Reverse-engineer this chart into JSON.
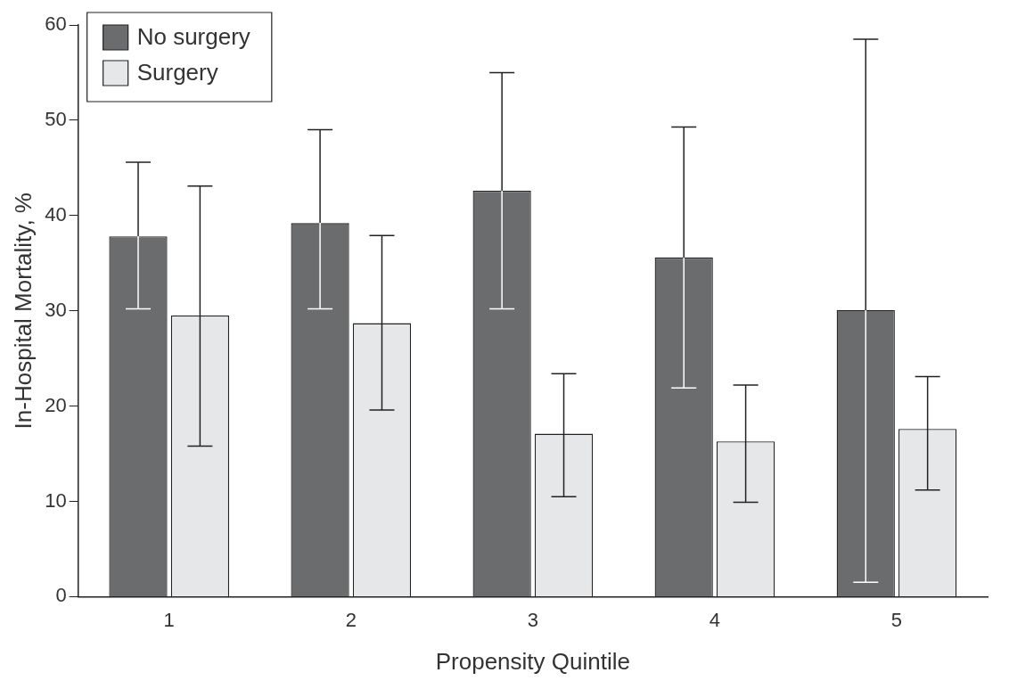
{
  "chart_data": {
    "type": "bar",
    "xlabel": "Propensity Quintile",
    "ylabel": "In-Hospital Mortality, %",
    "categories": [
      "1",
      "2",
      "3",
      "4",
      "5"
    ],
    "series": [
      {
        "name": "No surgery",
        "color": "#6b6c6e",
        "values": [
          37.8,
          39.2,
          42.6,
          35.6,
          30.1
        ],
        "errors": [
          [
            30.2,
            45.6
          ],
          [
            30.2,
            49.0
          ],
          [
            30.2,
            55.0
          ],
          [
            21.9,
            49.3
          ],
          [
            1.5,
            58.5
          ]
        ]
      },
      {
        "name": "Surgery",
        "color": "#e6e7e8",
        "values": [
          29.5,
          28.7,
          17.1,
          16.3,
          17.6
        ],
        "errors": [
          [
            15.8,
            43.1
          ],
          [
            19.6,
            37.9
          ],
          [
            10.5,
            23.4
          ],
          [
            9.9,
            22.2
          ],
          [
            11.2,
            23.1
          ]
        ]
      }
    ],
    "ylim": [
      0,
      60
    ],
    "yticks": [
      0,
      10,
      20,
      30,
      40,
      50,
      60
    ],
    "grid": false,
    "legend": "top left"
  }
}
